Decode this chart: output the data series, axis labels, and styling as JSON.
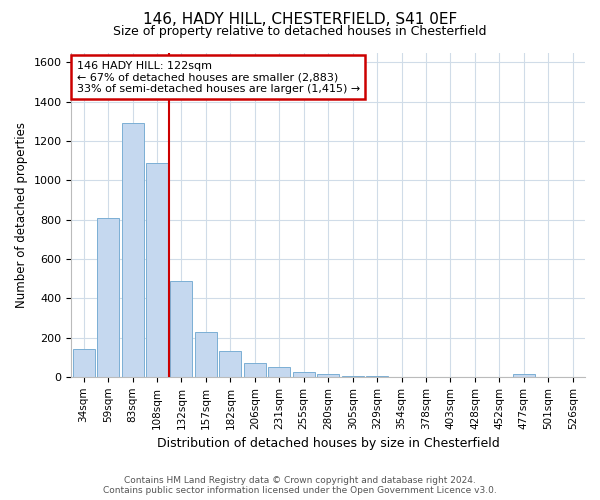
{
  "title1": "146, HADY HILL, CHESTERFIELD, S41 0EF",
  "title2": "Size of property relative to detached houses in Chesterfield",
  "xlabel": "Distribution of detached houses by size in Chesterfield",
  "ylabel": "Number of detached properties",
  "footer": "Contains HM Land Registry data © Crown copyright and database right 2024.\nContains public sector information licensed under the Open Government Licence v3.0.",
  "bar_color": "#c5d8ef",
  "bar_edge_color": "#7bafd4",
  "background_color": "#ffffff",
  "grid_color": "#d0dce8",
  "annotation_box_color": "#cc0000",
  "vline_color": "#cc0000",
  "categories": [
    "34sqm",
    "59sqm",
    "83sqm",
    "108sqm",
    "132sqm",
    "157sqm",
    "182sqm",
    "206sqm",
    "231sqm",
    "255sqm",
    "280sqm",
    "305sqm",
    "329sqm",
    "354sqm",
    "378sqm",
    "403sqm",
    "428sqm",
    "452sqm",
    "477sqm",
    "501sqm",
    "526sqm"
  ],
  "values": [
    140,
    810,
    1290,
    1090,
    490,
    230,
    130,
    70,
    50,
    25,
    15,
    5,
    5,
    0,
    0,
    0,
    0,
    0,
    15,
    0,
    0
  ],
  "ylim": [
    0,
    1650
  ],
  "yticks": [
    0,
    200,
    400,
    600,
    800,
    1000,
    1200,
    1400,
    1600
  ],
  "vline_position": 3.5,
  "annotation_text": "146 HADY HILL: 122sqm\n← 67% of detached houses are smaller (2,883)\n33% of semi-detached houses are larger (1,415) →"
}
